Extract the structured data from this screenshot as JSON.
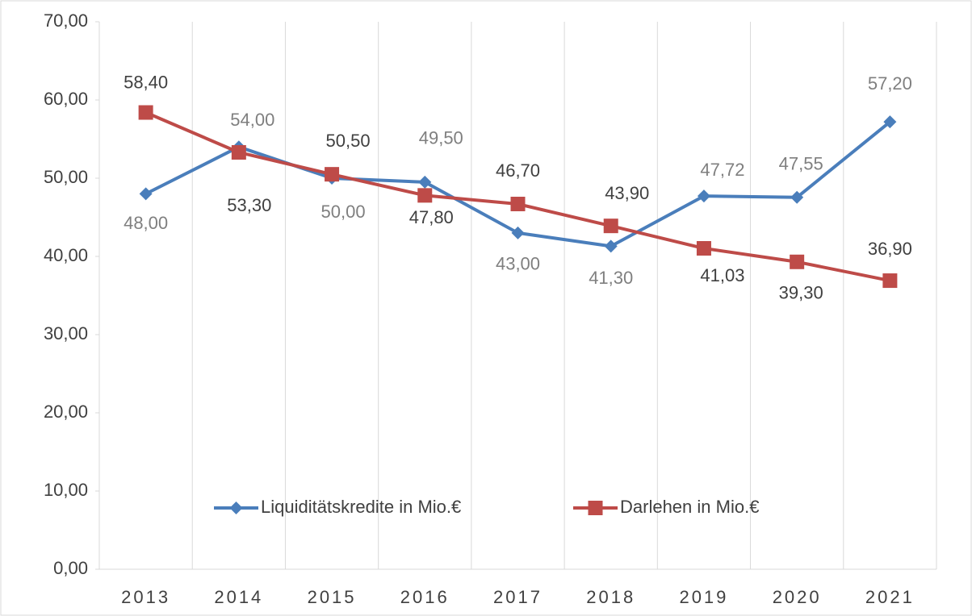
{
  "chart_data": {
    "type": "line",
    "categories": [
      "2013",
      "2014",
      "2015",
      "2016",
      "2017",
      "2018",
      "2019",
      "2020",
      "2021"
    ],
    "series": [
      {
        "name": "Liquiditätskredite in Mio.€",
        "color": "#4a7ebb",
        "marker": "diamond",
        "values": [
          48.0,
          54.0,
          50.0,
          49.5,
          43.0,
          41.3,
          47.72,
          47.55,
          57.2
        ],
        "value_labels": [
          "48,00",
          "54,00",
          "50,00",
          "49,50",
          "43,00",
          "41,30",
          "47,72",
          "47,55",
          "57,20"
        ]
      },
      {
        "name": "Darlehen in Mio.€",
        "color": "#be4b48",
        "marker": "square",
        "values": [
          58.4,
          53.3,
          50.5,
          47.8,
          46.7,
          43.9,
          41.03,
          39.3,
          36.9
        ],
        "value_labels": [
          "58,40",
          "53,30",
          "50,50",
          "47,80",
          "46,70",
          "43,90",
          "41,03",
          "39,30",
          "36,90"
        ]
      }
    ],
    "ylim": [
      0,
      70
    ],
    "yticks": [
      {
        "value": 0,
        "label": "0,00"
      },
      {
        "value": 10,
        "label": "10,00"
      },
      {
        "value": 20,
        "label": "20,00"
      },
      {
        "value": 30,
        "label": "30,00"
      },
      {
        "value": 40,
        "label": "40,00"
      },
      {
        "value": 50,
        "label": "50,00"
      },
      {
        "value": 60,
        "label": "60,00"
      },
      {
        "value": 70,
        "label": "70,00"
      }
    ],
    "grid": true,
    "legend": "bottom"
  }
}
